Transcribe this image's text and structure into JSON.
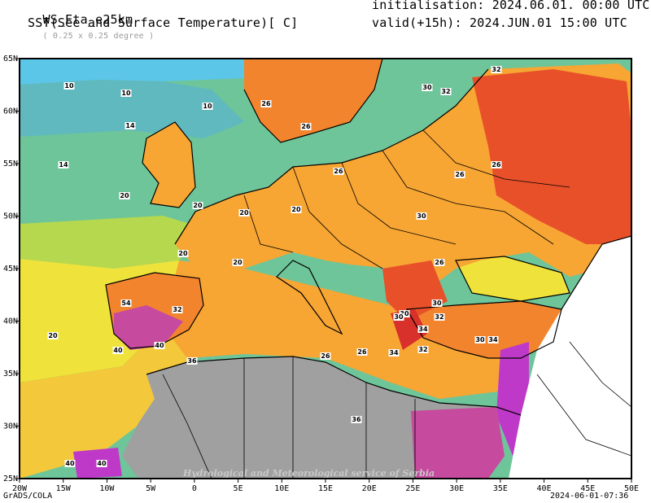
{
  "header": {
    "model": "WS_Eta_e25km",
    "resolution": "( 0.25 x 0.25 degree )",
    "field": "SST(See and Surface Temperature)[ C]",
    "init": "initialisation: 2024.06.01. 00:00 UTC",
    "valid": "valid(+15h): 2024.JUN.01 15:00 UTC"
  },
  "map": {
    "lon_ticks": [
      "20W",
      "15W",
      "10W",
      "5W",
      "0",
      "5E",
      "10E",
      "15E",
      "20E",
      "25E",
      "30E",
      "35E",
      "40E",
      "45E",
      "50E"
    ],
    "lat_ticks": [
      "65N",
      "60N",
      "55N",
      "50N",
      "45N",
      "40N",
      "35N",
      "30N",
      "25N"
    ],
    "watermark": "Hydrological and Meteorological service of Serbia",
    "contour_labels": [
      "10",
      "10",
      "10",
      "14",
      "14",
      "20",
      "20",
      "20",
      "20",
      "20",
      "20",
      "20",
      "26",
      "26",
      "26",
      "26",
      "26",
      "26",
      "26",
      "26",
      "30",
      "30",
      "30",
      "30",
      "30",
      "30",
      "32",
      "32",
      "32",
      "32",
      "32",
      "34",
      "34",
      "34",
      "36",
      "36",
      "40",
      "40",
      "40",
      "40",
      "54"
    ]
  },
  "colors": {
    "c6": "#5bc6e8",
    "c10": "#5fb9bf",
    "c14": "#6ec59a",
    "c18": "#b5d84e",
    "c20": "#efe33b",
    "c22": "#f3c83a",
    "c26": "#f7a533",
    "c28": "#f2842e",
    "c30": "#e8502a",
    "c32": "#d8302a",
    "c36": "#c64a9e",
    "c40": "#bf39c9",
    "land_nodata": "#a0a0a0"
  },
  "footer": {
    "left": "GrADS/COLA",
    "right": "2024-06-01-07:36"
  }
}
